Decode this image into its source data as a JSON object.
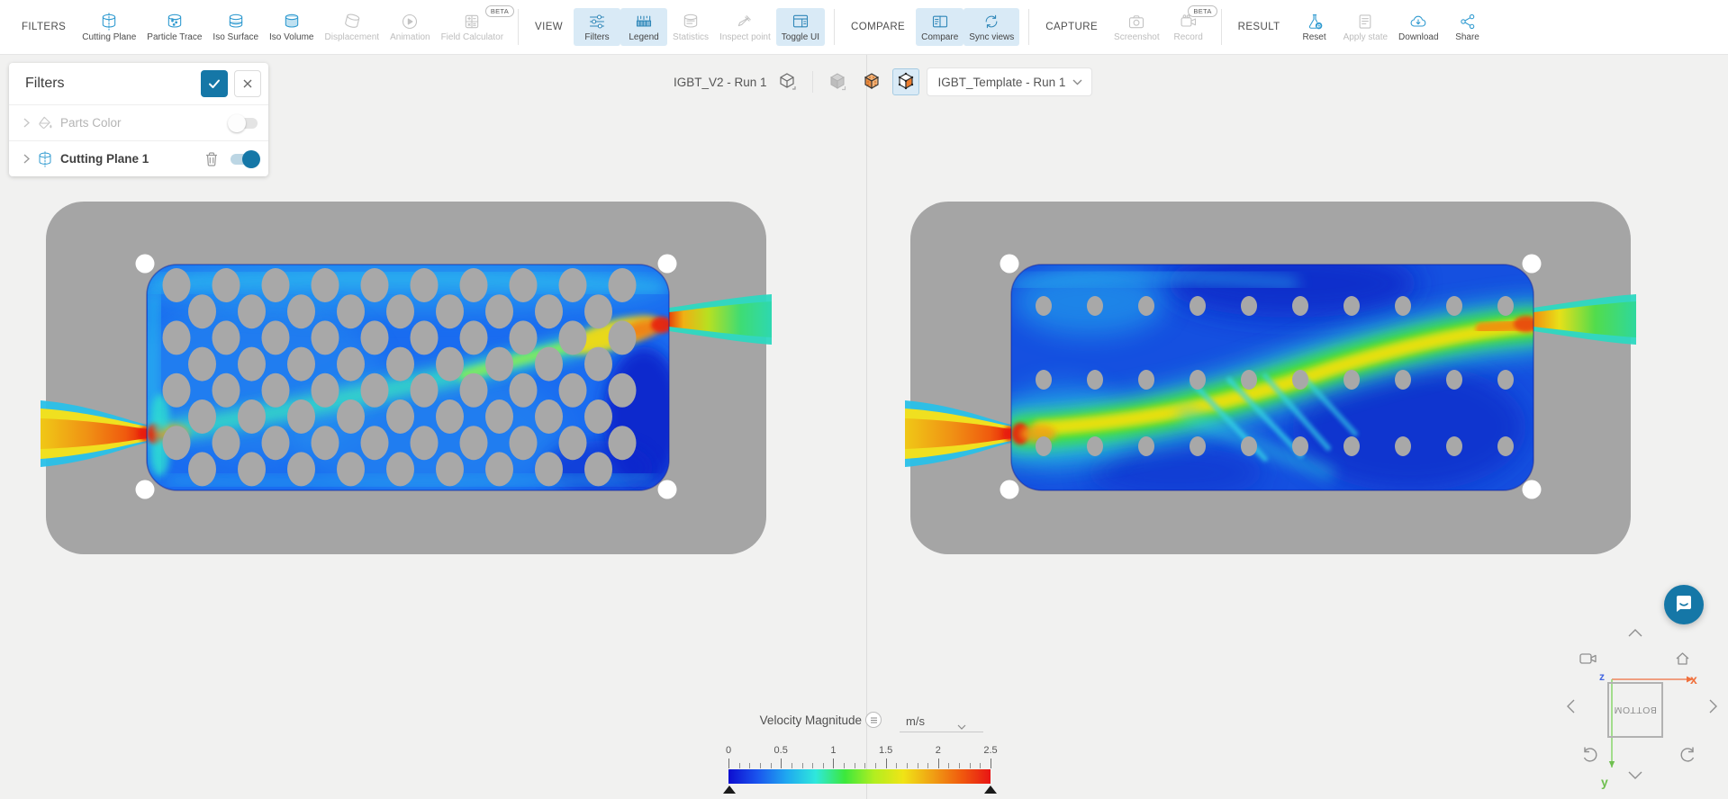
{
  "toolbar": {
    "beta_label": "BETA",
    "groups": [
      {
        "label": "FILTERS",
        "buttons": [
          {
            "label": "Cutting Plane",
            "icon": "cutting-plane-icon",
            "state": "enabled"
          },
          {
            "label": "Particle Trace",
            "icon": "particle-trace-icon",
            "state": "enabled"
          },
          {
            "label": "Iso Surface",
            "icon": "iso-surface-icon",
            "state": "enabled"
          },
          {
            "label": "Iso Volume",
            "icon": "iso-volume-icon",
            "state": "enabled"
          },
          {
            "label": "Displacement",
            "icon": "displacement-icon",
            "state": "disabled"
          },
          {
            "label": "Animation",
            "icon": "animation-icon",
            "state": "disabled"
          },
          {
            "label": "Field Calculator",
            "icon": "field-calculator-icon",
            "state": "disabled",
            "beta": true
          }
        ]
      },
      {
        "label": "VIEW",
        "buttons": [
          {
            "label": "Filters",
            "icon": "filters-icon",
            "state": "active"
          },
          {
            "label": "Legend",
            "icon": "legend-icon",
            "state": "active"
          },
          {
            "label": "Statistics",
            "icon": "statistics-icon",
            "state": "disabled"
          },
          {
            "label": "Inspect point",
            "icon": "inspect-point-icon",
            "state": "disabled"
          },
          {
            "label": "Toggle UI",
            "icon": "toggle-ui-icon",
            "state": "active"
          }
        ]
      },
      {
        "label": "COMPARE",
        "buttons": [
          {
            "label": "Compare",
            "icon": "compare-icon",
            "state": "active"
          },
          {
            "label": "Sync views",
            "icon": "sync-views-icon",
            "state": "active"
          }
        ]
      },
      {
        "label": "CAPTURE",
        "buttons": [
          {
            "label": "Screenshot",
            "icon": "screenshot-icon",
            "state": "disabled"
          },
          {
            "label": "Record",
            "icon": "record-icon",
            "state": "disabled",
            "beta": true
          }
        ]
      },
      {
        "label": "RESULT",
        "buttons": [
          {
            "label": "Reset",
            "icon": "reset-icon",
            "state": "enabled"
          },
          {
            "label": "Apply state",
            "icon": "apply-state-icon",
            "state": "disabled"
          },
          {
            "label": "Download",
            "icon": "download-icon",
            "state": "enabled"
          },
          {
            "label": "Share",
            "icon": "share-icon",
            "state": "enabled"
          }
        ]
      }
    ]
  },
  "filters_panel": {
    "title": "Filters",
    "rows": [
      {
        "label": "Parts Color",
        "icon": "paint-bucket-icon",
        "enabled": false,
        "toggle_on": false,
        "deletable": false
      },
      {
        "label": "Cutting Plane 1",
        "icon": "cutting-plane-icon",
        "enabled": true,
        "toggle_on": true,
        "deletable": true
      }
    ]
  },
  "view_selector": {
    "left_run": "IGBT_V2 - Run 1",
    "right_run": "IGBT_Template - Run 1"
  },
  "legend": {
    "field": "Velocity Magnitude",
    "unit": "m/s",
    "min": 0,
    "max": 2.5,
    "tick_labels": [
      "0",
      "0.5",
      "1",
      "1.5",
      "2",
      "2.5"
    ],
    "colormap": [
      "#0d0dd0",
      "#1a55ee",
      "#1fa8f0",
      "#2fe8dc",
      "#3ce83c",
      "#b2ee20",
      "#f0e416",
      "#f0a014",
      "#f05a0e",
      "#e81414"
    ]
  },
  "nav_widget": {
    "face_label": "BOTTOM",
    "x_label": "x",
    "y_label": "y",
    "z_label": "z"
  },
  "scene": {
    "left_pin_rows": 8,
    "left_pin_cols": 10,
    "right_pin_rows": 3,
    "right_pin_cols": 10,
    "plate_color": "#a5a5a5",
    "hole_color": "#ffffff",
    "fluid_base_left": "#1a6cf0",
    "fluid_base_right": "#1550e0"
  },
  "colors": {
    "accent_blue": "#2f9ad0",
    "active_button_bg": "#d9eaf6",
    "teal_button": "#1577a7",
    "canvas_bg": "#f1f1f0"
  }
}
